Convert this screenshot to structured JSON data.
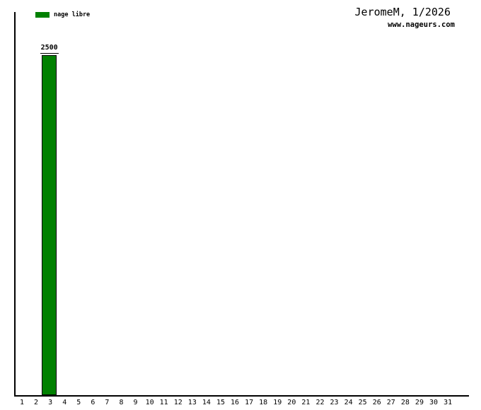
{
  "chart_data": {
    "type": "bar",
    "title": "JeromeM, 1/2026",
    "watermark": "www.nageurs.com",
    "xlabel": "",
    "ylabel": "",
    "categories": [
      "1",
      "2",
      "3",
      "4",
      "5",
      "6",
      "7",
      "8",
      "9",
      "10",
      "11",
      "12",
      "13",
      "14",
      "15",
      "16",
      "17",
      "18",
      "19",
      "20",
      "21",
      "22",
      "23",
      "24",
      "25",
      "26",
      "27",
      "28",
      "29",
      "30",
      "31"
    ],
    "series": [
      {
        "name": "nage libre",
        "color": "#008000",
        "values": [
          0,
          0,
          2500,
          0,
          0,
          0,
          0,
          0,
          0,
          0,
          0,
          0,
          0,
          0,
          0,
          0,
          0,
          0,
          0,
          0,
          0,
          0,
          0,
          0,
          0,
          0,
          0,
          0,
          0,
          0,
          0
        ]
      }
    ],
    "bar_value_labels": true,
    "grid": false,
    "legend_position": "top-left",
    "axis_color": "#000000",
    "background_color": "#ffffff",
    "ylim": [
      0,
      2800
    ]
  }
}
